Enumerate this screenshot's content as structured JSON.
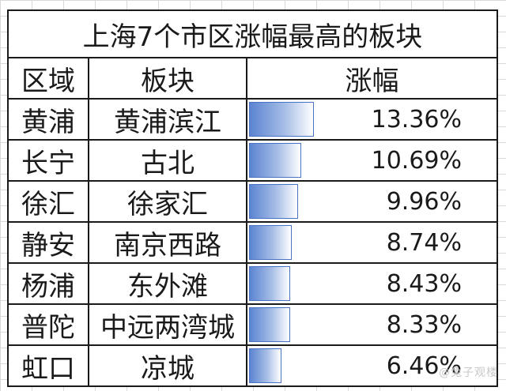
{
  "title": "上海7个市区涨幅最高的板块",
  "headers": {
    "district": "区域",
    "sector": "板块",
    "increase": "涨幅"
  },
  "rows": [
    {
      "district": "黄浦",
      "sector": "黄浦滨江",
      "increase_label": "13.36%",
      "value": 13.36
    },
    {
      "district": "长宁",
      "sector": "古北",
      "increase_label": "10.69%",
      "value": 10.69
    },
    {
      "district": "徐汇",
      "sector": "徐家汇",
      "increase_label": "9.96%",
      "value": 9.96
    },
    {
      "district": "静安",
      "sector": "南京西路",
      "increase_label": "8.74%",
      "value": 8.74
    },
    {
      "district": "杨浦",
      "sector": "东外滩",
      "increase_label": "8.43%",
      "value": 8.43
    },
    {
      "district": "普陀",
      "sector": "中远两湾城",
      "increase_label": "8.33%",
      "value": 8.33
    },
    {
      "district": "虹口",
      "sector": "凉城",
      "increase_label": "6.46%",
      "value": 6.46
    }
  ],
  "bar_max": 13.36,
  "bar_color": "#5b84d1",
  "watermark": "@兔子观楼"
}
